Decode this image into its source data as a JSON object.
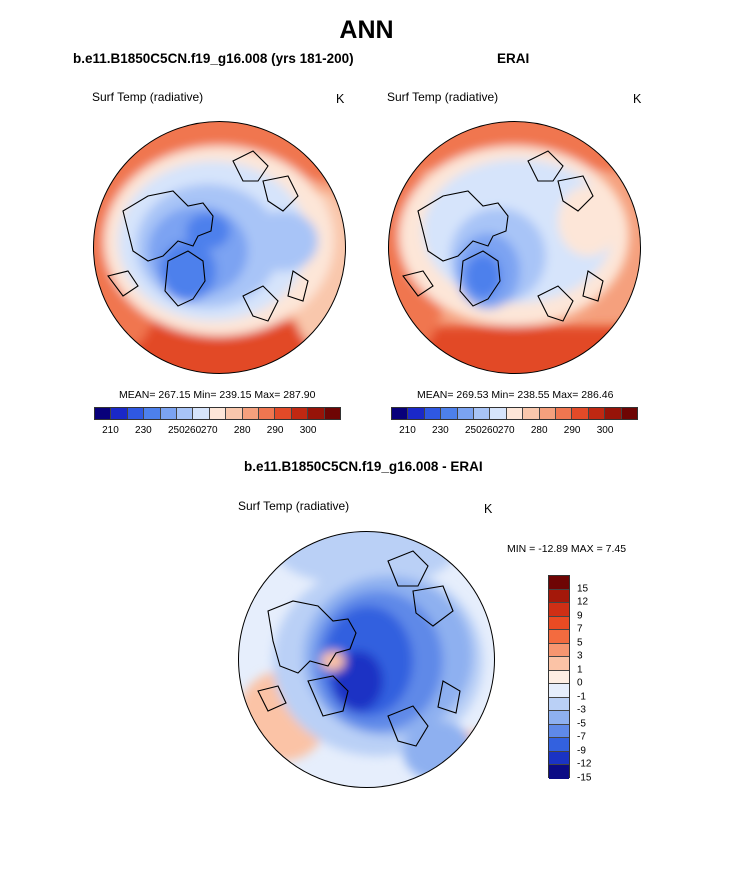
{
  "figure_title": "ANN",
  "panels": {
    "model": {
      "title": "b.e11.B1850C5CN.f19_g16.008 (yrs 181-200)",
      "variable": "Surf Temp (radiative)",
      "units": "K",
      "stats": "MEAN= 267.15  Min= 239.15  Max= 287.90"
    },
    "obs": {
      "title": "ERAI",
      "variable": "Surf Temp (radiative)",
      "units": "K",
      "stats": "MEAN= 269.53  Min= 238.55  Max= 286.46"
    },
    "diff": {
      "title": "b.e11.B1850C5CN.f19_g16.008 - ERAI",
      "variable": "Surf Temp (radiative)",
      "units": "K",
      "stats": "MIN = -12.89 MAX =   7.45"
    }
  },
  "chart_data": [
    {
      "type": "heatmap",
      "projection": "north-polar-stereographic",
      "title": "b.e11.B1850C5CN.f19_g16.008 (yrs 181-200)",
      "variable": "Surf Temp (radiative)",
      "units": "K",
      "mean": 267.15,
      "min": 239.15,
      "max": 287.9,
      "contour_levels": [
        210,
        220,
        230,
        240,
        250,
        255,
        260,
        265,
        270,
        275,
        280,
        285,
        290,
        295,
        300
      ],
      "tick_labels": [
        "210",
        "230",
        "250",
        "260",
        "270",
        "280",
        "290",
        "300"
      ]
    },
    {
      "type": "heatmap",
      "projection": "north-polar-stereographic",
      "title": "ERAI",
      "variable": "Surf Temp (radiative)",
      "units": "K",
      "mean": 269.53,
      "min": 238.55,
      "max": 286.46,
      "contour_levels": [
        210,
        220,
        230,
        240,
        250,
        255,
        260,
        265,
        270,
        275,
        280,
        285,
        290,
        295,
        300
      ],
      "tick_labels": [
        "210",
        "230",
        "250",
        "260",
        "270",
        "280",
        "290",
        "300"
      ]
    },
    {
      "type": "heatmap",
      "projection": "north-polar-stereographic",
      "title": "b.e11.B1850C5CN.f19_g16.008 - ERAI",
      "variable": "Surf Temp (radiative)",
      "units": "K",
      "min": -12.89,
      "max": 7.45,
      "contour_levels": [
        -15,
        -12,
        -9,
        -7,
        -5,
        -3,
        -1,
        0,
        1,
        3,
        5,
        7,
        9,
        12,
        15
      ],
      "tick_labels": [
        "15",
        "12",
        "9",
        "7",
        "5",
        "3",
        "1",
        "0",
        "-1",
        "-3",
        "-5",
        "-7",
        "-9",
        "-12",
        "-15"
      ]
    }
  ],
  "colors": {
    "abs_palette": [
      "#08007a",
      "#1a28c8",
      "#2f58e2",
      "#4d80ec",
      "#7ba3f2",
      "#a8c4f7",
      "#d6e4fb",
      "#fde6d8",
      "#f9c7ac",
      "#f5a07d",
      "#f07650",
      "#e24a28",
      "#c02812",
      "#971308",
      "#6e0504"
    ],
    "diff_palette": [
      "#6e0504",
      "#a4180a",
      "#cf2f15",
      "#ea4b23",
      "#f36b3f",
      "#f79670",
      "#fbc3a6",
      "#feeee3",
      "#e6eefc",
      "#bad0f6",
      "#8eb0f0",
      "#5f89e8",
      "#3361df",
      "#1a33c4",
      "#0b0b85"
    ]
  }
}
